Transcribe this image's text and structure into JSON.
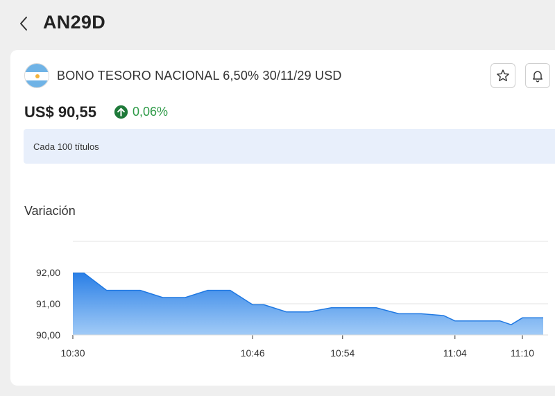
{
  "header": {
    "title": "AN29D",
    "back_icon": "chevron-left-icon"
  },
  "bond": {
    "name": "BONO TESORO NACIONAL 6,50% 30/11/29 USD",
    "flag_icon": "argentina-flag-icon",
    "price": "US$ 90,55",
    "change": "0,06%",
    "change_direction_icon": "arrow-up-circle-icon",
    "change_color": "#2e9a47",
    "info": "Cada 100 títulos"
  },
  "actions": {
    "favorite_icon": "star-icon",
    "alert_icon": "bell-icon"
  },
  "chart_section": {
    "title": "Variación"
  },
  "chart_data": {
    "type": "area",
    "x": [
      "10:30",
      "10:31",
      "10:33",
      "10:36",
      "10:38",
      "10:40",
      "10:42",
      "10:44",
      "10:46",
      "10:47",
      "10:49",
      "10:51",
      "10:53",
      "10:54",
      "10:55",
      "10:57",
      "10:59",
      "11:00",
      "11:01",
      "11:02",
      "11:03",
      "11:04",
      "11:05",
      "11:06",
      "11:07",
      "11:08",
      "11:09",
      "11:10",
      "11:11"
    ],
    "values": [
      91.98,
      91.98,
      91.43,
      91.43,
      91.2,
      91.2,
      91.43,
      91.43,
      90.97,
      90.97,
      90.74,
      90.74,
      90.87,
      90.87,
      90.87,
      90.87,
      90.68,
      90.68,
      90.68,
      90.65,
      90.62,
      90.45,
      90.45,
      90.45,
      90.45,
      90.45,
      90.33,
      90.55,
      90.55
    ],
    "x_ticks": [
      "10:30",
      "10:46",
      "10:54",
      "11:04",
      "11:10"
    ],
    "y_ticks": [
      "92,00",
      "91,00",
      "90,00"
    ],
    "ylim": [
      90,
      93
    ],
    "grid": true,
    "fill_color": "#2f86e8",
    "line_color": "#1f78e2"
  }
}
